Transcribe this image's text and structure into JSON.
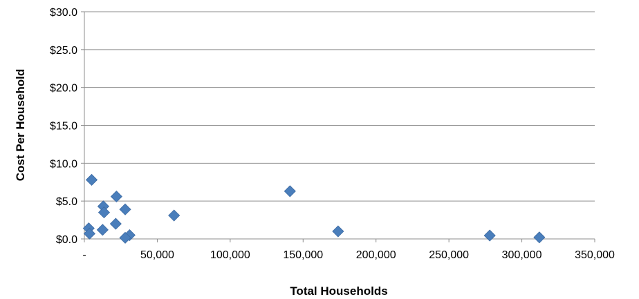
{
  "chart_data": {
    "type": "scatter",
    "xlabel": "Total Households",
    "ylabel": "Cost Per Household",
    "xlim": [
      0,
      350000
    ],
    "ylim": [
      0,
      30
    ],
    "x_ticks": [
      0,
      50000,
      100000,
      150000,
      200000,
      250000,
      300000,
      350000
    ],
    "x_tick_labels": [
      "-",
      "50,000",
      "100,000",
      "150,000",
      "200,000",
      "250,000",
      "300,000",
      "350,000"
    ],
    "y_ticks": [
      0,
      5,
      10,
      15,
      20,
      25,
      30
    ],
    "y_tick_labels": [
      "$0.0",
      "$5.0",
      "$10.0",
      "$15.0",
      "$20.0",
      "$25.0",
      "$30.0"
    ],
    "grid": "horizontal",
    "legend": "none",
    "marker": "diamond",
    "marker_color": "#4a7ebb",
    "points": [
      {
        "x": 5000,
        "y": 7.8
      },
      {
        "x": 3000,
        "y": 1.4
      },
      {
        "x": 3500,
        "y": 0.7
      },
      {
        "x": 13000,
        "y": 4.3
      },
      {
        "x": 13500,
        "y": 3.5
      },
      {
        "x": 12500,
        "y": 1.2
      },
      {
        "x": 21500,
        "y": 2.0
      },
      {
        "x": 22000,
        "y": 5.6
      },
      {
        "x": 28000,
        "y": 3.9
      },
      {
        "x": 31000,
        "y": 0.5
      },
      {
        "x": 28000,
        "y": 0.15
      },
      {
        "x": 61500,
        "y": 3.1
      },
      {
        "x": 141000,
        "y": 6.3
      },
      {
        "x": 174000,
        "y": 1.0
      },
      {
        "x": 278000,
        "y": 0.45
      },
      {
        "x": 312000,
        "y": 0.2
      }
    ]
  }
}
